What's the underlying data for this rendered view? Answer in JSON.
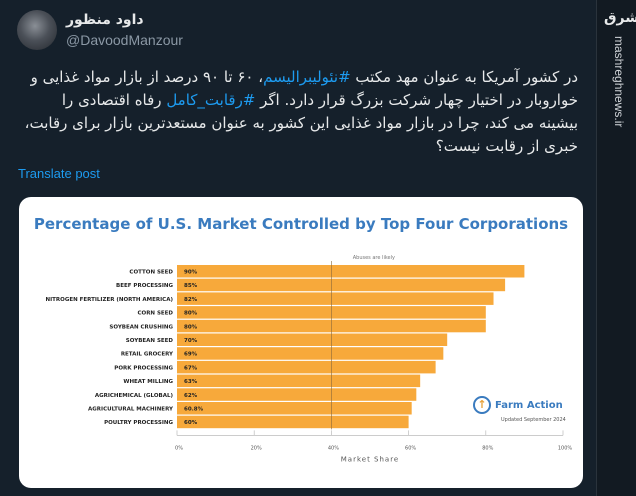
{
  "post": {
    "author_name": "داود منظور",
    "handle": "@DavoodManzour",
    "text_parts": [
      "در کشور آمریکا به عنوان مهد مکتب ",
      "#نئولیبرالیسم",
      "، ۶۰ تا ۹۰ درصد از بازار مواد غذایی و خواروبار در اختیار چهار شرکت بزرگ قرار دارد. اگر ",
      "#رقابت_کامل",
      " رفاه اقتصادی را بیشینه می کند، چرا در بازار مواد غذایی این کشور به عنوان مستعدترین بازار برای رقابت، خبری از رقابت نیست؟"
    ],
    "translate_label": "Translate post"
  },
  "watermark": {
    "logo": "مشرق",
    "site": "mashreghnews.ir"
  },
  "colors": {
    "bar": "#f7a93b",
    "title": "#3a7bbf",
    "background": "#15202b",
    "link": "#1d9bf0"
  },
  "chart_data": {
    "type": "bar",
    "orientation": "horizontal",
    "title": "Percentage of U.S. Market Controlled by Top Four Corporations",
    "annotation": "Abuses are likely",
    "categories": [
      "COTTON SEED",
      "BEEF PROCESSING",
      "NITROGEN FERTILIZER (NORTH AMERICA)",
      "CORN SEED",
      "SOYBEAN CRUSHING",
      "SOYBEAN SEED",
      "RETAIL GROCERY",
      "PORK PROCESSING",
      "WHEAT MILLING",
      "AGRICHEMICAL (GLOBAL)",
      "AGRICULTURAL MACHINERY",
      "POULTRY PROCESSING"
    ],
    "values": [
      90,
      85,
      82,
      80,
      80,
      70,
      69,
      67,
      63,
      62,
      60.8,
      60
    ],
    "data_labels": [
      "90%",
      "85%",
      "82%",
      "80%",
      "80%",
      "70%",
      "69%",
      "67%",
      "63%",
      "62%",
      "60.8%",
      "60%"
    ],
    "xlabel": "Market Share",
    "xlim": [
      0,
      100
    ],
    "xticks": [
      "0%",
      "20%",
      "40%",
      "60%",
      "80%",
      "100%"
    ],
    "reference_line": 40,
    "source": {
      "name": "Farm Action",
      "updated": "Updated September 2024"
    }
  }
}
